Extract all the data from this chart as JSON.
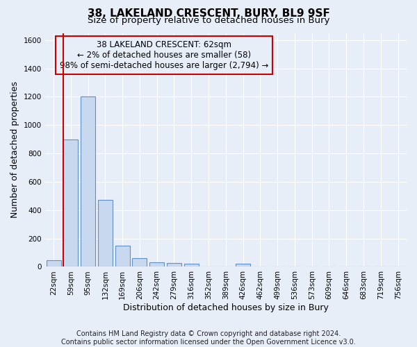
{
  "title": "38, LAKELAND CRESCENT, BURY, BL9 9SF",
  "subtitle": "Size of property relative to detached houses in Bury",
  "xlabel": "Distribution of detached houses by size in Bury",
  "ylabel": "Number of detached properties",
  "categories": [
    "22sqm",
    "59sqm",
    "95sqm",
    "132sqm",
    "169sqm",
    "206sqm",
    "242sqm",
    "279sqm",
    "316sqm",
    "352sqm",
    "389sqm",
    "426sqm",
    "462sqm",
    "499sqm",
    "536sqm",
    "573sqm",
    "609sqm",
    "646sqm",
    "683sqm",
    "719sqm",
    "756sqm"
  ],
  "bar_values": [
    45,
    900,
    1200,
    470,
    150,
    60,
    30,
    25,
    20,
    0,
    0,
    20,
    0,
    0,
    0,
    0,
    0,
    0,
    0,
    0,
    0
  ],
  "bar_color": "#c8d8ef",
  "bar_edgecolor": "#6090c8",
  "ylim": [
    0,
    1650
  ],
  "yticks": [
    0,
    200,
    400,
    600,
    800,
    1000,
    1200,
    1400,
    1600
  ],
  "property_label": "38 LAKELAND CRESCENT: 62sqm",
  "annotation_line1": "← 2% of detached houses are smaller (58)",
  "annotation_line2": "98% of semi-detached houses are larger (2,794) →",
  "vline_bar_index": 1,
  "footer_line1": "Contains HM Land Registry data © Crown copyright and database right 2024.",
  "footer_line2": "Contains public sector information licensed under the Open Government Licence v3.0.",
  "background_color": "#e8eef8",
  "plot_bg_color": "#e8eef8",
  "grid_color": "#ffffff",
  "annotation_box_edgecolor": "#cc0000",
  "vline_color": "#cc0000",
  "title_fontsize": 11,
  "subtitle_fontsize": 9.5,
  "axis_label_fontsize": 9,
  "tick_fontsize": 7.5,
  "annotation_fontsize": 8.5,
  "footer_fontsize": 7
}
